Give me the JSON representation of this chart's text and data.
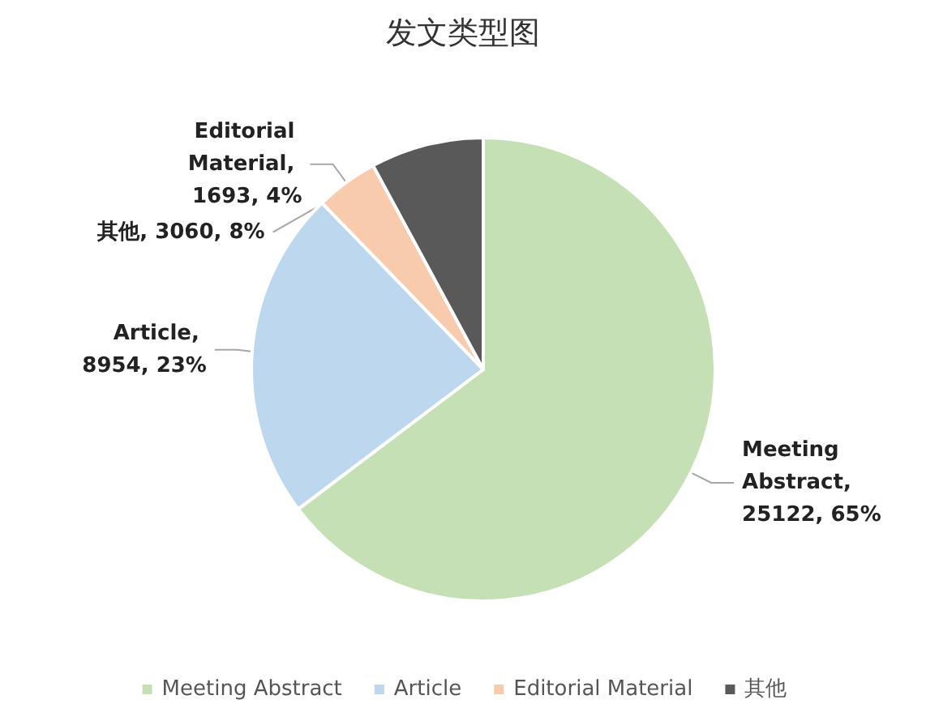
{
  "chart_data": {
    "type": "pie",
    "title": "发文类型图",
    "categories": [
      "Meeting Abstract",
      "Article",
      "Editorial Material",
      "其他"
    ],
    "values": [
      25122,
      8954,
      1693,
      3060
    ],
    "colors": [
      "#c5e0b4",
      "#bdd7ee",
      "#f8cbad",
      "#595959"
    ],
    "value_labels": [
      "Meeting Abstract, 25122, 65%",
      "Article, 8954, 23%",
      "Editorial Material, 1693, 4%",
      "其他, 3060, 8%"
    ],
    "legend": "bottom"
  }
}
